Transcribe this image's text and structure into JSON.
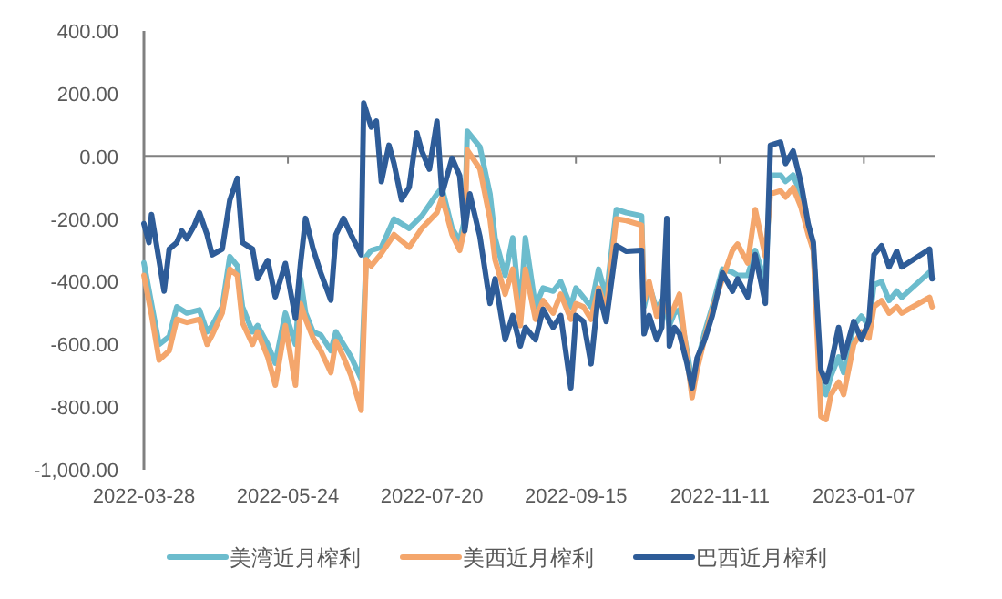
{
  "chart_data": {
    "type": "line",
    "x": [
      "2022-03-28",
      "2022-03-31",
      "2022-04-03",
      "2022-04-07",
      "2022-04-10",
      "2022-04-14",
      "2022-04-19",
      "2022-04-22",
      "2022-04-24",
      "2022-04-28",
      "2022-05-01",
      "2022-05-04",
      "2022-05-06",
      "2022-05-10",
      "2022-05-12",
      "2022-05-16",
      "2022-05-19",
      "2022-05-23",
      "2022-05-27",
      "2022-05-29",
      "2022-05-31",
      "2022-06-03",
      "2022-06-06",
      "2022-06-10",
      "2022-06-12",
      "2022-06-15",
      "2022-06-18",
      "2022-06-22",
      "2022-06-24",
      "2022-06-26",
      "2022-06-30",
      "2022-07-05",
      "2022-07-11",
      "2022-07-16",
      "2022-07-22",
      "2022-07-24",
      "2022-07-28",
      "2022-07-31",
      "2022-08-02",
      "2022-08-03",
      "2022-08-08",
      "2022-08-12",
      "2022-08-14",
      "2022-08-18",
      "2022-08-21",
      "2022-08-24",
      "2022-08-26",
      "2022-08-30",
      "2022-09-02",
      "2022-09-06",
      "2022-09-09",
      "2022-09-13",
      "2022-09-15",
      "2022-09-18",
      "2022-09-21",
      "2022-09-24",
      "2022-09-27",
      "2022-10-01",
      "2022-10-05",
      "2022-10-11",
      "2022-10-12",
      "2022-10-14",
      "2022-10-17",
      "2022-10-19",
      "2022-10-21",
      "2022-10-22",
      "2022-10-24",
      "2022-10-26",
      "2022-10-29",
      "2022-10-31",
      "2022-11-02",
      "2022-11-05",
      "2022-11-08",
      "2022-11-12",
      "2022-11-16",
      "2022-11-18",
      "2022-11-22",
      "2022-11-25",
      "2022-11-29",
      "2022-12-01",
      "2022-12-05",
      "2022-12-07",
      "2022-12-10",
      "2022-12-13",
      "2022-12-16",
      "2022-12-18",
      "2022-12-21",
      "2022-12-23",
      "2022-12-25",
      "2022-12-28",
      "2022-12-30",
      "2023-01-03",
      "2023-01-06",
      "2023-01-09",
      "2023-01-11",
      "2023-01-14",
      "2023-01-17",
      "2023-01-20",
      "2023-01-22",
      "2023-02-02",
      "2023-02-03"
    ],
    "series": [
      {
        "name": "美湾近月榨利",
        "color": "#6cbccd",
        "values": [
          -340,
          -470,
          -600,
          -575,
          -480,
          -500,
          -490,
          -560,
          -540,
          -480,
          -320,
          -350,
          -480,
          -560,
          -540,
          -600,
          -660,
          -500,
          -600,
          -390,
          -500,
          -560,
          -570,
          -620,
          -560,
          -600,
          -640,
          -710,
          -320,
          -300,
          -290,
          -200,
          -230,
          -190,
          -120,
          -100,
          -230,
          -270,
          -200,
          80,
          30,
          -120,
          -260,
          -380,
          -260,
          -500,
          -260,
          -480,
          -420,
          -430,
          -400,
          -480,
          -420,
          -450,
          -480,
          -360,
          -450,
          -170,
          -180,
          -190,
          -480,
          -410,
          -490,
          -460,
          -500,
          -540,
          -500,
          -490,
          -620,
          -720,
          -660,
          -560,
          -480,
          -360,
          -370,
          -380,
          -380,
          -300,
          -400,
          -60,
          -60,
          -80,
          -60,
          -120,
          -230,
          -300,
          -720,
          -760,
          -700,
          -640,
          -690,
          -540,
          -510,
          -540,
          -410,
          -400,
          -460,
          -430,
          -450,
          -370,
          -390
        ]
      },
      {
        "name": "美西近月榨利",
        "color": "#f4a66c",
        "values": [
          -380,
          -505,
          -650,
          -620,
          -520,
          -530,
          -520,
          -600,
          -570,
          -500,
          -360,
          -380,
          -530,
          -600,
          -560,
          -640,
          -730,
          -540,
          -730,
          -470,
          -520,
          -580,
          -620,
          -690,
          -590,
          -640,
          -700,
          -810,
          -330,
          -350,
          -310,
          -250,
          -290,
          -230,
          -180,
          -130,
          -250,
          -300,
          -230,
          20,
          -40,
          -200,
          -330,
          -440,
          -360,
          -540,
          -360,
          -520,
          -460,
          -500,
          -440,
          -520,
          -470,
          -480,
          -520,
          -420,
          -490,
          -200,
          -205,
          -220,
          -460,
          -400,
          -510,
          -470,
          -480,
          -520,
          -480,
          -440,
          -640,
          -770,
          -680,
          -580,
          -490,
          -390,
          -300,
          -280,
          -340,
          -170,
          -320,
          -120,
          -110,
          -130,
          -100,
          -160,
          -250,
          -300,
          -830,
          -840,
          -760,
          -720,
          -760,
          -600,
          -560,
          -580,
          -480,
          -460,
          -500,
          -480,
          -500,
          -450,
          -480
        ]
      },
      {
        "name": "巴西近月榨利",
        "color": "#2e5c98",
        "x": [
          "2022-03-28",
          "2022-03-30",
          "2022-03-31",
          "2022-04-03",
          "2022-04-05",
          "2022-04-07",
          "2022-04-10",
          "2022-04-12",
          "2022-04-14",
          "2022-04-17",
          "2022-04-19",
          "2022-04-22",
          "2022-04-24",
          "2022-04-28",
          "2022-05-01",
          "2022-05-04",
          "2022-05-06",
          "2022-05-10",
          "2022-05-12",
          "2022-05-16",
          "2022-05-19",
          "2022-05-23",
          "2022-05-27",
          "2022-05-29",
          "2022-05-31",
          "2022-06-03",
          "2022-06-06",
          "2022-06-10",
          "2022-06-12",
          "2022-06-15",
          "2022-06-18",
          "2022-06-22",
          "2022-06-23",
          "2022-06-26",
          "2022-06-28",
          "2022-06-30",
          "2022-07-03",
          "2022-07-05",
          "2022-07-08",
          "2022-07-11",
          "2022-07-14",
          "2022-07-16",
          "2022-07-19",
          "2022-07-22",
          "2022-07-24",
          "2022-07-28",
          "2022-07-31",
          "2022-08-02",
          "2022-08-04",
          "2022-08-08",
          "2022-08-12",
          "2022-08-14",
          "2022-08-18",
          "2022-08-21",
          "2022-08-24",
          "2022-08-26",
          "2022-08-30",
          "2022-09-02",
          "2022-09-06",
          "2022-09-09",
          "2022-09-13",
          "2022-09-15",
          "2022-09-18",
          "2022-09-21",
          "2022-09-24",
          "2022-09-27",
          "2022-10-01",
          "2022-10-05",
          "2022-10-11",
          "2022-10-12",
          "2022-10-14",
          "2022-10-17",
          "2022-10-19",
          "2022-10-21",
          "2022-10-22",
          "2022-10-24",
          "2022-10-26",
          "2022-10-29",
          "2022-10-31",
          "2022-11-02",
          "2022-11-05",
          "2022-11-08",
          "2022-11-12",
          "2022-11-16",
          "2022-11-18",
          "2022-11-22",
          "2022-11-25",
          "2022-11-29",
          "2022-12-01",
          "2022-12-05",
          "2022-12-07",
          "2022-12-10",
          "2022-12-13",
          "2022-12-16",
          "2022-12-18",
          "2022-12-21",
          "2022-12-23",
          "2022-12-25",
          "2022-12-28",
          "2022-12-30",
          "2023-01-03",
          "2023-01-06",
          "2023-01-09",
          "2023-01-11",
          "2023-01-14",
          "2023-01-17",
          "2023-01-20",
          "2023-01-22",
          "2023-02-02",
          "2023-02-03"
        ],
        "values": [
          -215,
          -275,
          -186,
          -332,
          -430,
          -296,
          -275,
          -238,
          -263,
          -220,
          -180,
          -250,
          -314,
          -296,
          -140,
          -70,
          -275,
          -296,
          -390,
          -332,
          -448,
          -342,
          -517,
          -342,
          -198,
          -296,
          -372,
          -459,
          -250,
          -198,
          -250,
          -314,
          170,
          93,
          112,
          -81,
          35,
          -23,
          -139,
          -99,
          75,
          17,
          -41,
          112,
          -120,
          -6,
          -62,
          -238,
          -120,
          -256,
          -469,
          -391,
          -585,
          -508,
          -605,
          -546,
          -585,
          -488,
          -546,
          -508,
          -739,
          -508,
          -527,
          -662,
          -430,
          -527,
          -285,
          -303,
          -300,
          -566,
          -508,
          -585,
          -546,
          -198,
          -605,
          -546,
          -566,
          -662,
          -739,
          -643,
          -585,
          -508,
          -372,
          -430,
          -391,
          -449,
          -314,
          -469,
          35,
          45,
          -23,
          17,
          -81,
          -217,
          -275,
          -682,
          -720,
          -662,
          -546,
          -643,
          -527,
          -585,
          -527,
          -314,
          -285,
          -353,
          -303,
          -353,
          -296,
          -391
        ]
      }
    ],
    "xlim": [
      "2022-03-28",
      "2023-02-04"
    ],
    "xticks": [
      "2022-03-28",
      "2022-05-24",
      "2022-07-20",
      "2022-09-15",
      "2022-11-11",
      "2023-01-07"
    ],
    "ylim": [
      -1000,
      400
    ],
    "yticks": [
      {
        "value": 400,
        "label": "400.00"
      },
      {
        "value": 200,
        "label": "200.00"
      },
      {
        "value": 0,
        "label": "0.00"
      },
      {
        "value": -200,
        "label": "-200.00"
      },
      {
        "value": -400,
        "label": "-400.00"
      },
      {
        "value": -600,
        "label": "-600.00"
      },
      {
        "value": -800,
        "label": "-800.00"
      },
      {
        "value": -1000,
        "label": "-1,000.00"
      }
    ],
    "legend": "bottom",
    "marker": "none",
    "line_style": "solid"
  }
}
